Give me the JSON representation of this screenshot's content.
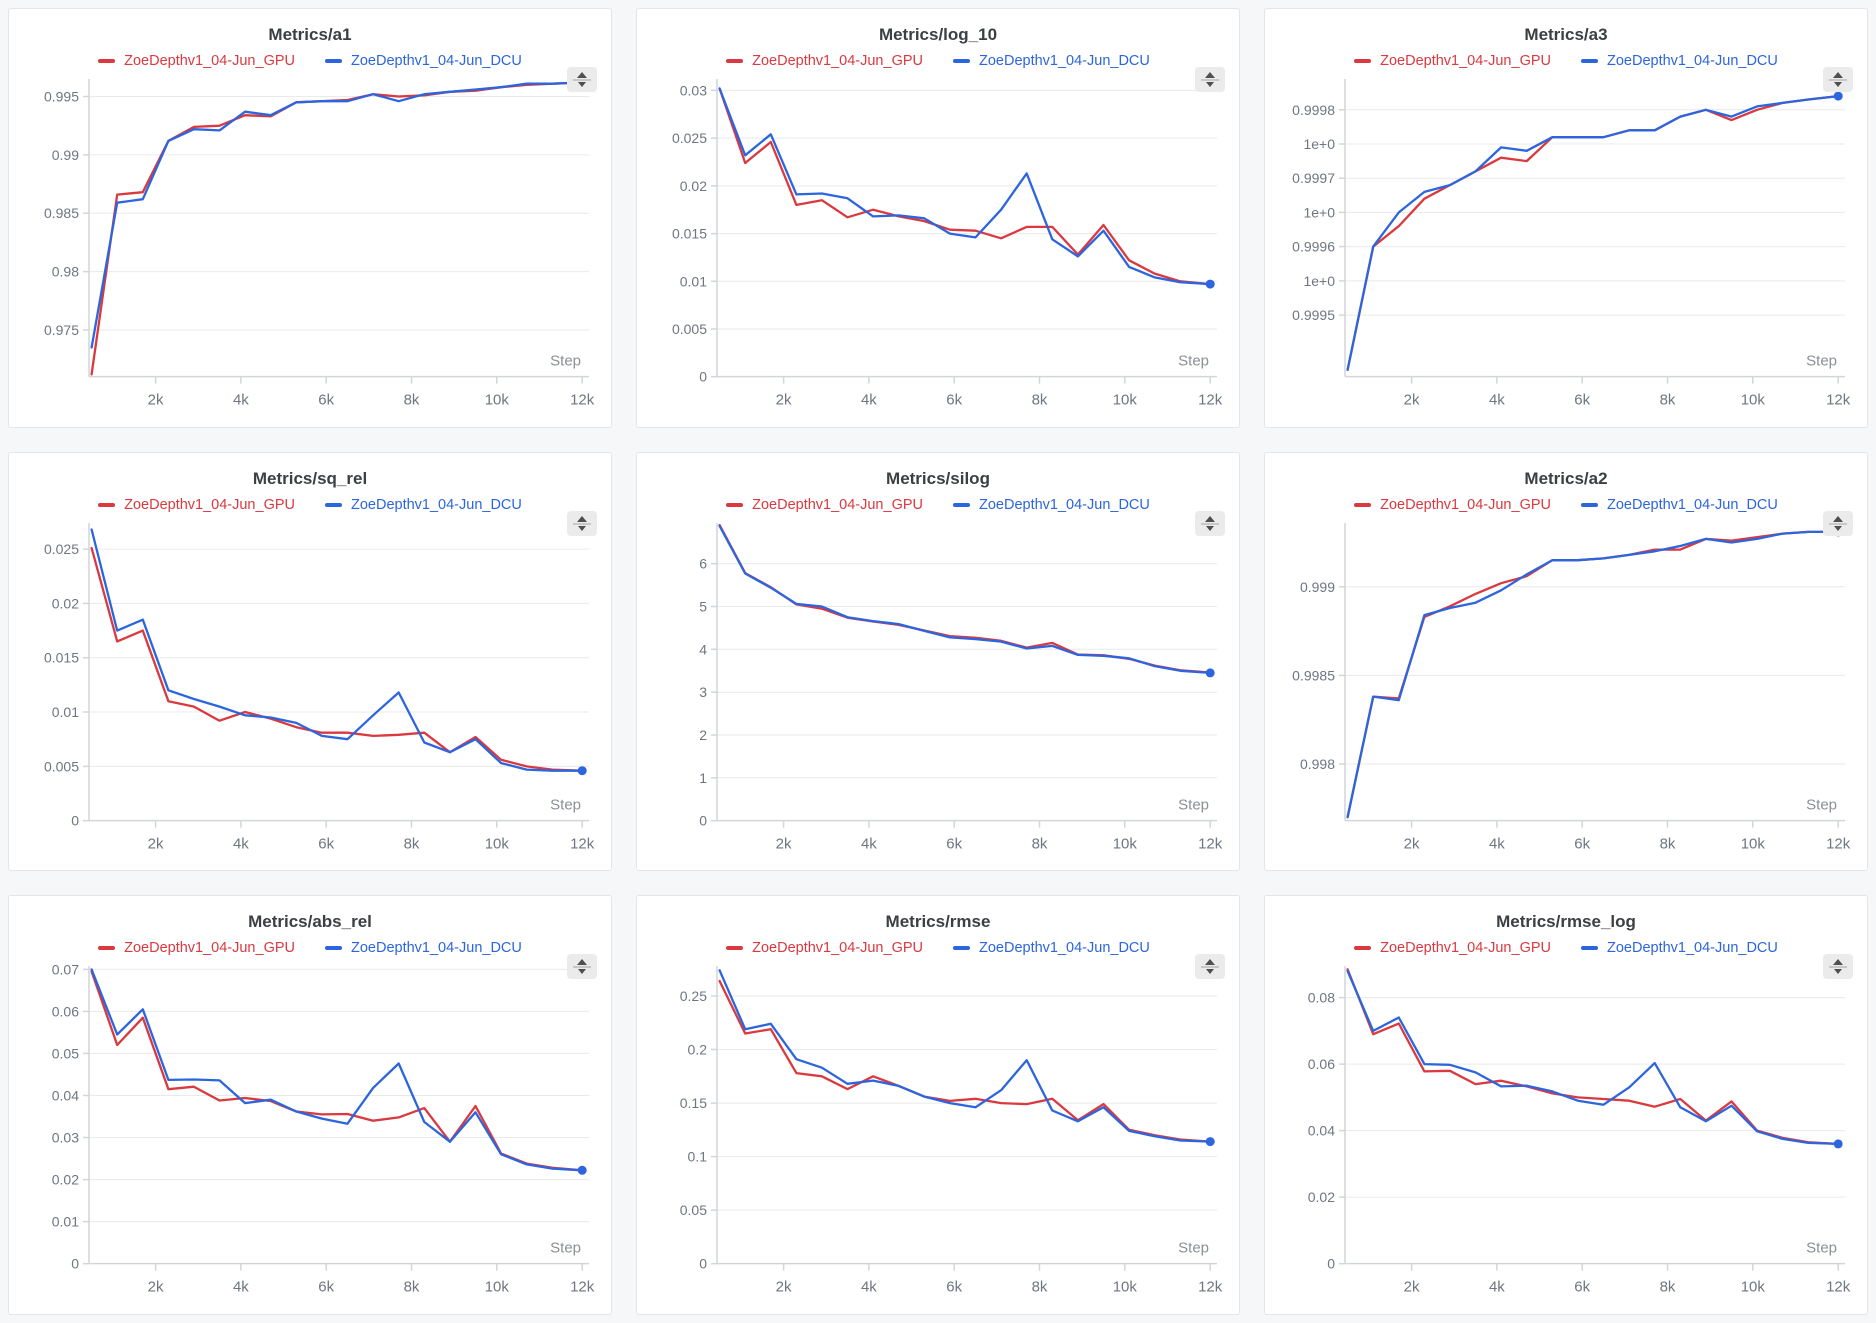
{
  "page": {
    "background_color": "#f6f7f8",
    "panel_background_color": "#ffffff"
  },
  "icons": {
    "sorter": "up-down-arrows-icon"
  },
  "chart_data": {
    "type": "line",
    "layout": "3x3-grid",
    "x_label": "Step",
    "x_domain": [
      440,
      12160
    ],
    "x_ticks": [
      {
        "v": 2000,
        "l": "2k"
      },
      {
        "v": 4000,
        "l": "4k"
      },
      {
        "v": 6000,
        "l": "6k"
      },
      {
        "v": 8000,
        "l": "8k"
      },
      {
        "v": 10000,
        "l": "10k"
      },
      {
        "v": 12000,
        "l": "12k"
      }
    ],
    "steps": [
      500,
      1100,
      1700,
      2300,
      2900,
      3500,
      4100,
      4700,
      5300,
      5900,
      6500,
      7100,
      7700,
      8300,
      8900,
      9500,
      10100,
      10700,
      11300,
      12000
    ],
    "series_names": [
      "ZoeDepthv1_04-Jun_GPU",
      "ZoeDepthv1_04-Jun_DCU"
    ],
    "series_colors": [
      "#d9393f",
      "#2c65dd"
    ],
    "style": {
      "grid_color": "#e9eaec",
      "axis_color": "#d2d6da",
      "tick_label_color": "#6f7680",
      "step_label_color": "#8b9096",
      "end_dot_color": "#2c65dd"
    },
    "charts": [
      {
        "title": "Metrics/a1",
        "y_domain": [
          0.971,
          0.9965
        ],
        "y_ticks": [
          {
            "v": 0.975,
            "l": "0.975"
          },
          {
            "v": 0.98,
            "l": "0.98"
          },
          {
            "v": 0.985,
            "l": "0.985"
          },
          {
            "v": 0.99,
            "l": "0.99"
          },
          {
            "v": 0.995,
            "l": "0.995"
          }
        ],
        "gpu": [
          0.9712,
          0.9866,
          0.9868,
          0.9912,
          0.9924,
          0.9925,
          0.9934,
          0.9933,
          0.9945,
          0.9946,
          0.9947,
          0.9952,
          0.995,
          0.9951,
          0.9954,
          0.9955,
          0.9958,
          0.996,
          0.9961,
          0.9962
        ],
        "dcu": [
          0.9735,
          0.9859,
          0.9862,
          0.9912,
          0.9922,
          0.9921,
          0.9937,
          0.9934,
          0.9945,
          0.9946,
          0.9946,
          0.9952,
          0.9946,
          0.9952,
          0.9954,
          0.9956,
          0.9958,
          0.9961,
          0.9961,
          0.9962
        ]
      },
      {
        "title": "Metrics/log_10",
        "y_domain": [
          0,
          0.0312
        ],
        "y_ticks": [
          {
            "v": 0,
            "l": "0"
          },
          {
            "v": 0.005,
            "l": "0.005"
          },
          {
            "v": 0.01,
            "l": "0.01"
          },
          {
            "v": 0.015,
            "l": "0.015"
          },
          {
            "v": 0.02,
            "l": "0.02"
          },
          {
            "v": 0.025,
            "l": "0.025"
          },
          {
            "v": 0.03,
            "l": "0.03"
          }
        ],
        "gpu": [
          0.0302,
          0.0224,
          0.0246,
          0.018,
          0.0185,
          0.0167,
          0.0175,
          0.0168,
          0.0163,
          0.0154,
          0.0153,
          0.0145,
          0.0157,
          0.0157,
          0.0128,
          0.0159,
          0.0122,
          0.0108,
          0.01,
          0.0097
        ],
        "dcu": [
          0.0302,
          0.0232,
          0.0254,
          0.0191,
          0.0192,
          0.0187,
          0.0168,
          0.0169,
          0.0166,
          0.015,
          0.0146,
          0.0175,
          0.0213,
          0.0144,
          0.0126,
          0.0153,
          0.0115,
          0.0104,
          0.0099,
          0.0097
        ]
      },
      {
        "title": "Metrics/a3",
        "y_domain": [
          0.99941,
          0.999845
        ],
        "y_ticks": [
          {
            "v": 0.9995,
            "l": "0.9995"
          },
          {
            "v": 0.99955,
            "l": "1e+0"
          },
          {
            "v": 0.9996,
            "l": "0.9996"
          },
          {
            "v": 0.99965,
            "l": "1e+0"
          },
          {
            "v": 0.9997,
            "l": "0.9997"
          },
          {
            "v": 0.99975,
            "l": "1e+0"
          },
          {
            "v": 0.9998,
            "l": "0.9998"
          }
        ],
        "gpu": [
          0.99942,
          0.9996,
          0.99963,
          0.99967,
          0.99969,
          0.99971,
          0.99973,
          0.999725,
          0.99976,
          0.99976,
          0.99976,
          0.99977,
          0.99977,
          0.99979,
          0.9998,
          0.999785,
          0.9998,
          0.99981,
          0.999815,
          0.99982
        ],
        "dcu": [
          0.99942,
          0.9996,
          0.99965,
          0.99968,
          0.99969,
          0.99971,
          0.999745,
          0.99974,
          0.99976,
          0.99976,
          0.99976,
          0.99977,
          0.99977,
          0.99979,
          0.9998,
          0.99979,
          0.999805,
          0.99981,
          0.999815,
          0.99982
        ]
      },
      {
        "title": "Metrics/sq_rel",
        "y_domain": [
          0,
          0.0274
        ],
        "y_ticks": [
          {
            "v": 0,
            "l": "0"
          },
          {
            "v": 0.005,
            "l": "0.005"
          },
          {
            "v": 0.01,
            "l": "0.01"
          },
          {
            "v": 0.015,
            "l": "0.015"
          },
          {
            "v": 0.02,
            "l": "0.02"
          },
          {
            "v": 0.025,
            "l": "0.025"
          }
        ],
        "gpu": [
          0.0251,
          0.0165,
          0.0175,
          0.011,
          0.0105,
          0.0092,
          0.01,
          0.0094,
          0.0086,
          0.0081,
          0.0081,
          0.0078,
          0.0079,
          0.0081,
          0.0063,
          0.0077,
          0.0056,
          0.005,
          0.0047,
          0.0046
        ],
        "dcu": [
          0.0268,
          0.0175,
          0.0185,
          0.012,
          0.0112,
          0.0105,
          0.0097,
          0.0095,
          0.009,
          0.0078,
          0.0075,
          0.0097,
          0.0118,
          0.0072,
          0.0063,
          0.0075,
          0.0053,
          0.0047,
          0.0046,
          0.0046
        ]
      },
      {
        "title": "Metrics/silog",
        "y_domain": [
          0,
          6.95
        ],
        "y_ticks": [
          {
            "v": 0,
            "l": "0"
          },
          {
            "v": 1,
            "l": "1"
          },
          {
            "v": 2,
            "l": "2"
          },
          {
            "v": 3,
            "l": "3"
          },
          {
            "v": 4,
            "l": "4"
          },
          {
            "v": 5,
            "l": "5"
          },
          {
            "v": 6,
            "l": "6"
          }
        ],
        "gpu": [
          6.9,
          5.78,
          5.45,
          5.05,
          4.95,
          4.74,
          4.65,
          4.57,
          4.44,
          4.31,
          4.27,
          4.2,
          4.04,
          4.15,
          3.88,
          3.86,
          3.78,
          3.62,
          3.51,
          3.46
        ],
        "dcu": [
          6.88,
          5.77,
          5.44,
          5.06,
          5.0,
          4.75,
          4.66,
          4.59,
          4.43,
          4.28,
          4.24,
          4.18,
          4.02,
          4.08,
          3.87,
          3.85,
          3.79,
          3.61,
          3.5,
          3.45
        ]
      },
      {
        "title": "Metrics/a2",
        "y_domain": [
          0.99768,
          0.99936
        ],
        "y_ticks": [
          {
            "v": 0.998,
            "l": "0.998"
          },
          {
            "v": 0.9985,
            "l": "0.9985"
          },
          {
            "v": 0.999,
            "l": "0.999"
          }
        ],
        "gpu": [
          0.9977,
          0.99838,
          0.99837,
          0.99883,
          0.99889,
          0.99896,
          0.99902,
          0.99906,
          0.99915,
          0.99915,
          0.99916,
          0.99918,
          0.99921,
          0.99921,
          0.99927,
          0.99926,
          0.99928,
          0.9993,
          0.99931,
          0.99931
        ],
        "dcu": [
          0.9977,
          0.99838,
          0.99836,
          0.99884,
          0.99888,
          0.99891,
          0.99898,
          0.99907,
          0.99915,
          0.99915,
          0.99916,
          0.99918,
          0.9992,
          0.99923,
          0.99927,
          0.99925,
          0.99927,
          0.9993,
          0.99931,
          0.99931
        ]
      },
      {
        "title": "Metrics/abs_rel",
        "y_domain": [
          0,
          0.0708
        ],
        "y_ticks": [
          {
            "v": 0,
            "l": "0"
          },
          {
            "v": 0.01,
            "l": "0.01"
          },
          {
            "v": 0.02,
            "l": "0.02"
          },
          {
            "v": 0.03,
            "l": "0.03"
          },
          {
            "v": 0.04,
            "l": "0.04"
          },
          {
            "v": 0.05,
            "l": "0.05"
          },
          {
            "v": 0.06,
            "l": "0.06"
          },
          {
            "v": 0.07,
            "l": "0.07"
          }
        ],
        "gpu": [
          0.0695,
          0.052,
          0.0585,
          0.0415,
          0.0421,
          0.0388,
          0.0394,
          0.0387,
          0.0362,
          0.0355,
          0.0356,
          0.034,
          0.0348,
          0.037,
          0.029,
          0.0375,
          0.0262,
          0.0238,
          0.0228,
          0.0222
        ],
        "dcu": [
          0.07,
          0.0545,
          0.0605,
          0.0437,
          0.0438,
          0.0436,
          0.0382,
          0.039,
          0.0362,
          0.0345,
          0.0333,
          0.0418,
          0.0476,
          0.0337,
          0.029,
          0.036,
          0.026,
          0.0236,
          0.0226,
          0.0222
        ]
      },
      {
        "title": "Metrics/rmse",
        "y_domain": [
          0,
          0.278
        ],
        "y_ticks": [
          {
            "v": 0,
            "l": "0"
          },
          {
            "v": 0.05,
            "l": "0.05"
          },
          {
            "v": 0.1,
            "l": "0.1"
          },
          {
            "v": 0.15,
            "l": "0.15"
          },
          {
            "v": 0.2,
            "l": "0.2"
          },
          {
            "v": 0.25,
            "l": "0.25"
          }
        ],
        "gpu": [
          0.264,
          0.215,
          0.219,
          0.178,
          0.175,
          0.163,
          0.175,
          0.166,
          0.156,
          0.152,
          0.154,
          0.15,
          0.149,
          0.154,
          0.134,
          0.149,
          0.125,
          0.12,
          0.116,
          0.114
        ],
        "dcu": [
          0.274,
          0.219,
          0.224,
          0.191,
          0.183,
          0.168,
          0.171,
          0.166,
          0.156,
          0.15,
          0.146,
          0.162,
          0.19,
          0.143,
          0.133,
          0.146,
          0.124,
          0.119,
          0.115,
          0.114
        ]
      },
      {
        "title": "Metrics/rmse_log",
        "y_domain": [
          0,
          0.0895
        ],
        "y_ticks": [
          {
            "v": 0,
            "l": "0"
          },
          {
            "v": 0.02,
            "l": "0.02"
          },
          {
            "v": 0.04,
            "l": "0.04"
          },
          {
            "v": 0.06,
            "l": "0.06"
          },
          {
            "v": 0.08,
            "l": "0.08"
          }
        ],
        "gpu": [
          0.0885,
          0.069,
          0.0722,
          0.0578,
          0.058,
          0.054,
          0.055,
          0.0533,
          0.0512,
          0.05,
          0.0495,
          0.049,
          0.0472,
          0.0495,
          0.043,
          0.0488,
          0.04,
          0.0378,
          0.0365,
          0.036
        ],
        "dcu": [
          0.088,
          0.07,
          0.074,
          0.06,
          0.0598,
          0.0575,
          0.0533,
          0.0535,
          0.0518,
          0.049,
          0.0478,
          0.053,
          0.0603,
          0.047,
          0.0428,
          0.0475,
          0.0398,
          0.0375,
          0.0363,
          0.036
        ]
      }
    ]
  }
}
